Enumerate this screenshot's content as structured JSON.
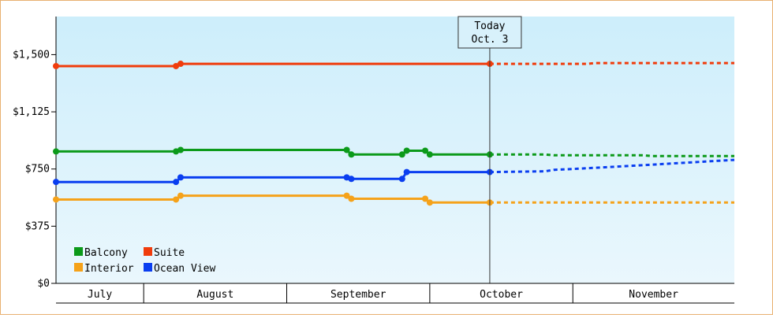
{
  "chart_data": {
    "type": "line",
    "title": "",
    "xlabel": "",
    "ylabel": "",
    "ylim": [
      0,
      1750
    ],
    "y_ticks": [
      {
        "value": 0,
        "label": "$0"
      },
      {
        "value": 375,
        "label": "$375"
      },
      {
        "value": 750,
        "label": "$750"
      },
      {
        "value": 1125,
        "label": "$1,125"
      },
      {
        "value": 1500,
        "label": "$1,500"
      }
    ],
    "x_range": [
      "2024-07-01",
      "2024-11-25"
    ],
    "months": [
      {
        "label": "July",
        "start": "2024-07-01",
        "end": "2024-07-20"
      },
      {
        "label": "August",
        "start": "2024-07-20",
        "end": "2024-08-20"
      },
      {
        "label": "September",
        "start": "2024-08-20",
        "end": "2024-09-20"
      },
      {
        "label": "October",
        "start": "2024-09-20",
        "end": "2024-10-21"
      },
      {
        "label": "November",
        "start": "2024-10-21",
        "end": "2024-11-25"
      }
    ],
    "today": {
      "date": "2024-10-03",
      "label_line1": "Today",
      "label_line2": "Oct. 3"
    },
    "legend": {
      "position": "bottom-left"
    },
    "grid": false,
    "colors": {
      "background_top": "#cdeefb",
      "background_bottom": "#eaf7fd",
      "axis": "#000000",
      "frame": "#e8b070"
    },
    "series": [
      {
        "name": "Balcony",
        "color": "#0c9a1a",
        "history": [
          [
            "2024-07-01",
            865
          ],
          [
            "2024-07-27",
            865
          ],
          [
            "2024-07-28",
            875
          ],
          [
            "2024-09-02",
            875
          ],
          [
            "2024-09-03",
            845
          ],
          [
            "2024-09-14",
            845
          ],
          [
            "2024-09-15",
            870
          ],
          [
            "2024-09-19",
            870
          ],
          [
            "2024-09-20",
            845
          ],
          [
            "2024-10-03",
            845
          ]
        ],
        "history_markers": [
          "2024-07-01",
          "2024-07-27",
          "2024-07-28",
          "2024-09-02",
          "2024-09-03",
          "2024-09-14",
          "2024-09-15",
          "2024-09-19",
          "2024-09-20",
          "2024-10-03"
        ],
        "forecast": [
          [
            "2024-10-03",
            845
          ],
          [
            "2024-10-15",
            845
          ],
          [
            "2024-10-17",
            840
          ],
          [
            "2024-11-05",
            840
          ],
          [
            "2024-11-07",
            835
          ],
          [
            "2024-11-25",
            835
          ]
        ]
      },
      {
        "name": "Suite",
        "color": "#f03c0c",
        "history": [
          [
            "2024-07-01",
            1425
          ],
          [
            "2024-07-27",
            1425
          ],
          [
            "2024-07-28",
            1440
          ],
          [
            "2024-10-03",
            1440
          ]
        ],
        "history_markers": [
          "2024-07-01",
          "2024-07-27",
          "2024-07-28",
          "2024-10-03"
        ],
        "forecast": [
          [
            "2024-10-03",
            1440
          ],
          [
            "2024-10-24",
            1440
          ],
          [
            "2024-10-26",
            1445
          ],
          [
            "2024-11-25",
            1445
          ]
        ]
      },
      {
        "name": "Interior",
        "color": "#f5a21a",
        "history": [
          [
            "2024-07-01",
            550
          ],
          [
            "2024-07-27",
            550
          ],
          [
            "2024-07-28",
            575
          ],
          [
            "2024-09-02",
            575
          ],
          [
            "2024-09-03",
            555
          ],
          [
            "2024-09-19",
            555
          ],
          [
            "2024-09-20",
            530
          ],
          [
            "2024-10-03",
            530
          ]
        ],
        "history_markers": [
          "2024-07-01",
          "2024-07-27",
          "2024-07-28",
          "2024-09-02",
          "2024-09-03",
          "2024-09-19",
          "2024-09-20",
          "2024-10-03"
        ],
        "forecast": [
          [
            "2024-10-03",
            530
          ],
          [
            "2024-11-25",
            530
          ]
        ]
      },
      {
        "name": "Ocean View",
        "color": "#0a3ef0",
        "history": [
          [
            "2024-07-01",
            665
          ],
          [
            "2024-07-27",
            665
          ],
          [
            "2024-07-28",
            695
          ],
          [
            "2024-09-02",
            695
          ],
          [
            "2024-09-03",
            685
          ],
          [
            "2024-09-14",
            685
          ],
          [
            "2024-09-15",
            730
          ],
          [
            "2024-10-03",
            730
          ]
        ],
        "history_markers": [
          "2024-07-01",
          "2024-07-27",
          "2024-07-28",
          "2024-09-02",
          "2024-09-03",
          "2024-09-14",
          "2024-09-15",
          "2024-10-03"
        ],
        "forecast": [
          [
            "2024-10-03",
            730
          ],
          [
            "2024-10-15",
            735
          ],
          [
            "2024-10-17",
            745
          ],
          [
            "2024-10-21",
            750
          ],
          [
            "2024-11-05",
            775
          ],
          [
            "2024-11-25",
            810
          ]
        ]
      }
    ]
  }
}
